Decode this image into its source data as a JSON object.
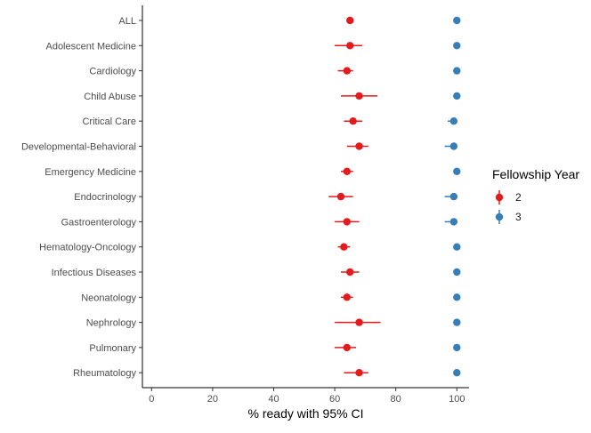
{
  "chart_data": {
    "type": "scatter",
    "subtype": "dot-and-whisker",
    "title": "",
    "xlabel": "% ready with 95% CI",
    "ylabel": "",
    "xlim": [
      -3,
      104
    ],
    "xticks": [
      0,
      20,
      40,
      60,
      80,
      100
    ],
    "grid": false,
    "legend_position": "right",
    "legend_title": "Fellowship Year",
    "categories": [
      "ALL",
      "Adolescent Medicine",
      "Cardiology",
      "Child Abuse",
      "Critical Care",
      "Developmental-Behavioral",
      "Emergency Medicine",
      "Endocrinology",
      "Gastroenterology",
      "Hematology-Oncology",
      "Infectious Diseases",
      "Neonatology",
      "Nephrology",
      "Pulmonary",
      "Rheumatology"
    ],
    "series": [
      {
        "name": "2",
        "color": "#E41A1C",
        "values": [
          65,
          65,
          64,
          68,
          66,
          68,
          64,
          62,
          64,
          63,
          65,
          64,
          68,
          64,
          68
        ],
        "ci_low": [
          64,
          60,
          61,
          62,
          63,
          64,
          62,
          58,
          60,
          61,
          62,
          62,
          60,
          60,
          63
        ],
        "ci_high": [
          66,
          69,
          66,
          74,
          69,
          71,
          66,
          66,
          68,
          65,
          68,
          66,
          75,
          67,
          71
        ]
      },
      {
        "name": "3",
        "color": "#377EB8",
        "values": [
          100,
          100,
          100,
          100,
          99,
          99,
          100,
          99,
          99,
          100,
          100,
          100,
          100,
          100,
          100
        ],
        "ci_low": [
          100,
          100,
          100,
          100,
          97,
          96,
          100,
          96,
          96,
          100,
          100,
          100,
          100,
          100,
          100
        ],
        "ci_high": [
          100,
          100,
          100,
          100,
          100,
          100,
          100,
          100,
          100,
          100,
          100,
          100,
          100,
          100,
          100
        ]
      }
    ]
  }
}
